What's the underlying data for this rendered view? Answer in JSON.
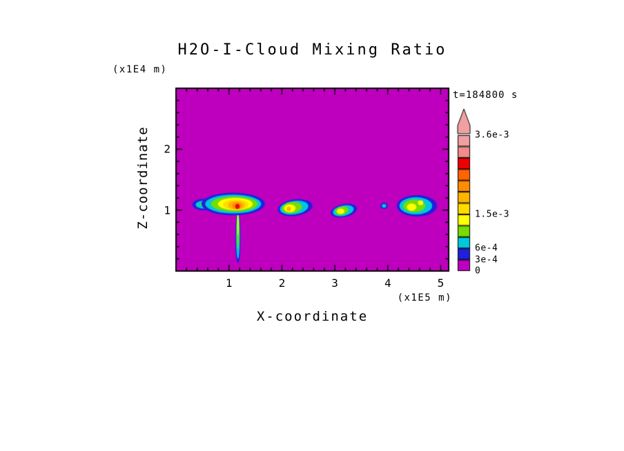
{
  "chart_data": {
    "type": "heatmap",
    "title": "H2O-I-Cloud Mixing Ratio",
    "time_annotation": "t=184800 s",
    "xlabel": "X-coordinate",
    "xunit": "(x1E5 m)",
    "ylabel": "Z-coordinate",
    "yunit": "(x1E4 m)",
    "xlim": [
      0,
      5.15
    ],
    "ylim": [
      0,
      3
    ],
    "xticks": [
      1,
      2,
      3,
      4,
      5
    ],
    "yticks": [
      1,
      2
    ],
    "minor_tick_step": 0.2,
    "frame_color": "#000000",
    "background_value": 0,
    "levels": [
      {
        "min": 0,
        "color": "#BE00BE"
      },
      {
        "min": 0.0003,
        "color": "#2020DC"
      },
      {
        "min": 0.0006,
        "color": "#00C8DC"
      },
      {
        "min": 0.0009,
        "color": "#78DC00"
      },
      {
        "min": 0.0012,
        "color": "#FFFF00"
      },
      {
        "min": 0.0015,
        "color": "#FFDC00"
      },
      {
        "min": 0.0018,
        "color": "#FFB400"
      },
      {
        "min": 0.0021,
        "color": "#FF8C00"
      },
      {
        "min": 0.0024,
        "color": "#FF6400"
      },
      {
        "min": 0.0027,
        "color": "#F00000"
      },
      {
        "min": 0.003,
        "color": "#F08C8C"
      },
      {
        "min": 0.0033,
        "color": "#F0A0A0"
      }
    ],
    "colorbar": {
      "max": 0.0036,
      "arrow_color": "#F0A0A0",
      "labels": [
        {
          "text": "3.6e-3",
          "value": 0.0036
        },
        {
          "text": "1.5e-3",
          "value": 0.0015
        },
        {
          "text": "6e-4",
          "value": 0.0006
        },
        {
          "text": "3e-4",
          "value": 0.0003
        },
        {
          "text": "0",
          "value": 0
        }
      ]
    },
    "clouds": [
      {
        "name": "storm-a-precip-streak",
        "layers": [
          {
            "v": 0.0003,
            "cx": 1.17,
            "cz": 0.55,
            "rx": 0.05,
            "rz": 0.42
          },
          {
            "v": 0.0006,
            "cx": 1.17,
            "cz": 0.58,
            "rx": 0.035,
            "rz": 0.38
          },
          {
            "v": 0.0009,
            "cx": 1.17,
            "cz": 0.66,
            "rx": 0.022,
            "rz": 0.3
          },
          {
            "v": 0.00135,
            "cx": 1.17,
            "cz": 0.78,
            "rx": 0.013,
            "rz": 0.2
          }
        ]
      },
      {
        "name": "storm-a-left-wing",
        "layers": [
          {
            "v": 0.0003,
            "cx": 0.52,
            "cz": 1.09,
            "rx": 0.21,
            "rz": 0.095
          },
          {
            "v": 0.0006,
            "cx": 0.52,
            "cz": 1.09,
            "rx": 0.15,
            "rz": 0.065
          },
          {
            "v": 0.0009,
            "cx": 0.53,
            "cz": 1.09,
            "rx": 0.07,
            "rz": 0.04
          }
        ]
      },
      {
        "name": "storm-a-main-anvil",
        "layers": [
          {
            "v": 0.0003,
            "cx": 1.08,
            "cz": 1.1,
            "rx": 0.6,
            "rz": 0.185
          },
          {
            "v": 0.0006,
            "cx": 1.08,
            "cz": 1.1,
            "rx": 0.53,
            "rz": 0.155
          },
          {
            "v": 0.0009,
            "cx": 1.1,
            "cz": 1.1,
            "rx": 0.44,
            "rz": 0.125
          },
          {
            "v": 0.00135,
            "cx": 1.12,
            "cz": 1.1,
            "rx": 0.33,
            "rz": 0.1
          },
          {
            "v": 0.00165,
            "cx": 1.13,
            "cz": 1.09,
            "rx": 0.24,
            "rz": 0.085
          },
          {
            "v": 0.002,
            "cx": 1.14,
            "cz": 1.08,
            "rx": 0.16,
            "rz": 0.07
          },
          {
            "v": 0.0023,
            "cx": 1.15,
            "cz": 1.07,
            "rx": 0.09,
            "rz": 0.055
          },
          {
            "v": 0.0028,
            "cx": 1.16,
            "cz": 1.06,
            "rx": 0.04,
            "rz": 0.04
          }
        ]
      },
      {
        "name": "storm-b",
        "layers": [
          {
            "v": 0.0003,
            "cx": 2.25,
            "cz": 1.04,
            "rx": 0.33,
            "rz": 0.135,
            "rot": -8
          },
          {
            "v": 0.0006,
            "cx": 2.23,
            "cz": 1.04,
            "rx": 0.27,
            "rz": 0.11,
            "rot": -8
          },
          {
            "v": 0.0009,
            "cx": 2.19,
            "cz": 1.04,
            "rx": 0.19,
            "rz": 0.09,
            "rot": -8
          },
          {
            "v": 0.00135,
            "cx": 2.15,
            "cz": 1.03,
            "rx": 0.11,
            "rz": 0.065
          },
          {
            "v": 0.0019,
            "cx": 2.13,
            "cz": 1.02,
            "rx": 0.04,
            "rz": 0.035
          }
        ]
      },
      {
        "name": "storm-c",
        "layers": [
          {
            "v": 0.0003,
            "cx": 3.17,
            "cz": 0.99,
            "rx": 0.25,
            "rz": 0.105,
            "rot": -12
          },
          {
            "v": 0.0006,
            "cx": 3.16,
            "cz": 0.99,
            "rx": 0.2,
            "rz": 0.085,
            "rot": -12
          },
          {
            "v": 0.0009,
            "cx": 3.13,
            "cz": 0.99,
            "rx": 0.13,
            "rz": 0.065,
            "rot": -12
          },
          {
            "v": 0.00135,
            "cx": 3.11,
            "cz": 0.98,
            "rx": 0.07,
            "rz": 0.045
          }
        ]
      },
      {
        "name": "storm-d-small-cell",
        "layers": [
          {
            "v": 0.0003,
            "cx": 3.93,
            "cz": 1.07,
            "rx": 0.07,
            "rz": 0.05
          },
          {
            "v": 0.0006,
            "cx": 3.93,
            "cz": 1.07,
            "rx": 0.04,
            "rz": 0.03
          }
        ]
      },
      {
        "name": "storm-e",
        "layers": [
          {
            "v": 0.0003,
            "cx": 4.55,
            "cz": 1.07,
            "rx": 0.38,
            "rz": 0.175
          },
          {
            "v": 0.0006,
            "cx": 4.53,
            "cz": 1.07,
            "rx": 0.31,
            "rz": 0.14
          },
          {
            "v": 0.0009,
            "cx": 4.5,
            "cz": 1.07,
            "rx": 0.21,
            "rz": 0.105
          },
          {
            "v": 0.00135,
            "cx": 4.45,
            "cz": 1.05,
            "rx": 0.09,
            "rz": 0.06
          },
          {
            "v": 0.00135,
            "cx": 4.62,
            "cz": 1.12,
            "rx": 0.05,
            "rz": 0.04
          }
        ]
      }
    ]
  }
}
